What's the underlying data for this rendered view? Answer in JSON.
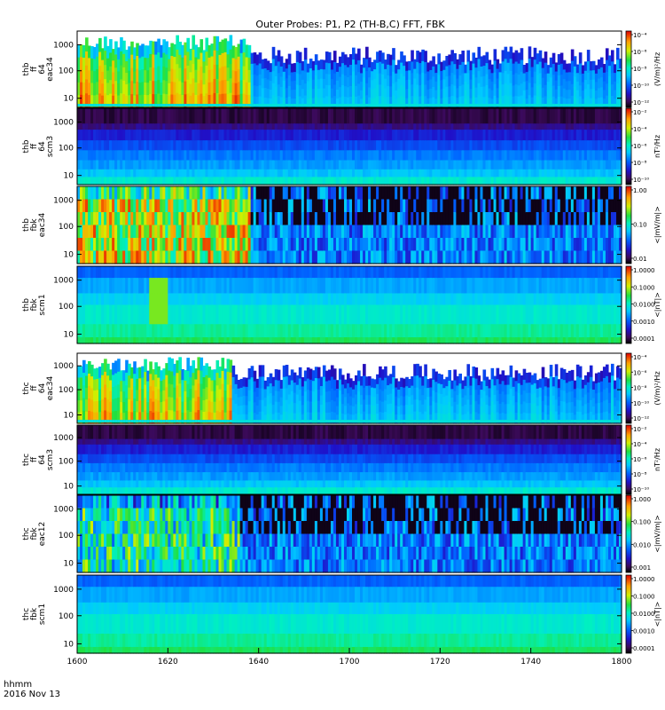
{
  "chart_data": {
    "type": "heatmap",
    "title": "Outer Probes: P1, P2 (TH-B,C) FFT, FBK",
    "time_axis": {
      "units_label": "hhmm",
      "date_label": "2016 Nov 13",
      "tick_labels": [
        "1600",
        "1620",
        "1640",
        "1700",
        "1720",
        "1740",
        "1800"
      ],
      "range": [
        "16:00",
        "18:00"
      ]
    },
    "panels": [
      {
        "id": "thb_ff_eac34",
        "ylabel_lines": [
          "thb",
          "ff",
          "64",
          "eac34"
        ],
        "y_ticks": [
          "10",
          "100",
          "1000"
        ],
        "yscale": "log",
        "colorbar": {
          "label": "(V/m)²/Hz",
          "ticks": [
            "10⁻⁴",
            "10⁻⁶",
            "10⁻⁸",
            "10⁻¹⁰",
            "10⁻¹²"
          ],
          "log_range": [
            -13,
            -4
          ]
        },
        "profile": {
          "style": "fft_e",
          "base": 0.25,
          "burst": 0.45,
          "burst_end_min": 38,
          "envelope_low": 0.55,
          "envelope_high": 0.95
        }
      },
      {
        "id": "thb_ff_scm3",
        "ylabel_lines": [
          "thb",
          "ff",
          "64",
          "scm3"
        ],
        "y_ticks": [
          "10",
          "100",
          "1000"
        ],
        "yscale": "log",
        "colorbar": {
          "label": "nT²/Hz",
          "ticks": [
            "10⁻²",
            "10⁻⁴",
            "10⁻⁶",
            "10⁻⁸",
            "10⁻¹⁰"
          ],
          "log_range": [
            -11,
            -2
          ]
        },
        "profile": {
          "style": "fft_b"
        }
      },
      {
        "id": "thb_fbk_eac34",
        "ylabel_lines": [
          "thb",
          "fbk",
          "eac34"
        ],
        "y_ticks": [
          "10",
          "100",
          "1000"
        ],
        "yscale": "log",
        "colorbar": {
          "label": "<|mV/m|>",
          "ticks": [
            "1.00",
            "0.10",
            "0.01"
          ],
          "log_range": [
            -2.5,
            0.2
          ]
        },
        "profile": {
          "style": "fbk_e",
          "burst_end_min": 38
        }
      },
      {
        "id": "thb_fbk_scm1",
        "ylabel_lines": [
          "thb",
          "fbk",
          "scm1"
        ],
        "y_ticks": [
          "10",
          "100",
          "1000"
        ],
        "yscale": "log",
        "colorbar": {
          "label": "<|nT|>",
          "ticks": [
            "1.0000",
            "0.1000",
            "0.0100",
            "0.0010",
            "0.0001"
          ],
          "log_range": [
            -4.5,
            0.2
          ]
        },
        "profile": {
          "style": "fbk_b"
        }
      },
      {
        "id": "thc_ff_eac34",
        "ylabel_lines": [
          "thc",
          "ff",
          "64",
          "eac34"
        ],
        "y_ticks": [
          "10",
          "100",
          "1000"
        ],
        "yscale": "log",
        "colorbar": {
          "label": "(V/m)²/Hz",
          "ticks": [
            "10⁻⁴",
            "10⁻⁶",
            "10⁻⁸",
            "10⁻¹⁰",
            "10⁻¹²"
          ],
          "log_range": [
            -13,
            -4
          ]
        },
        "profile": {
          "style": "fft_e",
          "base": 0.2,
          "burst": 0.3,
          "burst_end_min": 34,
          "envelope_low": 0.6,
          "envelope_high": 0.95
        }
      },
      {
        "id": "thc_ff_scm3",
        "ylabel_lines": [
          "thc",
          "ff",
          "64",
          "scm3"
        ],
        "y_ticks": [
          "10",
          "100",
          "1000"
        ],
        "yscale": "log",
        "colorbar": {
          "label": "nT²/Hz",
          "ticks": [
            "10⁻²",
            "10⁻⁴",
            "10⁻⁶",
            "10⁻⁸",
            "10⁻¹⁰"
          ],
          "log_range": [
            -11,
            -2
          ]
        },
        "profile": {
          "style": "fft_b"
        }
      },
      {
        "id": "thc_fbk_eac12",
        "ylabel_lines": [
          "thc",
          "fbk",
          "eac12"
        ],
        "y_ticks": [
          "10",
          "100",
          "1000"
        ],
        "yscale": "log",
        "colorbar": {
          "label": "<|mV/m|>",
          "ticks": [
            "1.000",
            "0.100",
            "0.010",
            "0.001"
          ],
          "log_range": [
            -3.2,
            0.2
          ]
        },
        "profile": {
          "style": "fbk_e2",
          "burst_end_min": 36
        }
      },
      {
        "id": "thc_fbk_scm1",
        "ylabel_lines": [
          "thc",
          "fbk",
          "scm1"
        ],
        "y_ticks": [
          "10",
          "100",
          "1000"
        ],
        "yscale": "log",
        "colorbar": {
          "label": "<|nT|>",
          "ticks": [
            "1.0000",
            "0.1000",
            "0.0100",
            "0.0010",
            "0.0001"
          ],
          "log_range": [
            -4.5,
            0.2
          ]
        },
        "profile": {
          "style": "fbk_b2"
        }
      }
    ],
    "colormap": "rainbow (black-violet-blue-cyan-green-yellow-red)"
  }
}
